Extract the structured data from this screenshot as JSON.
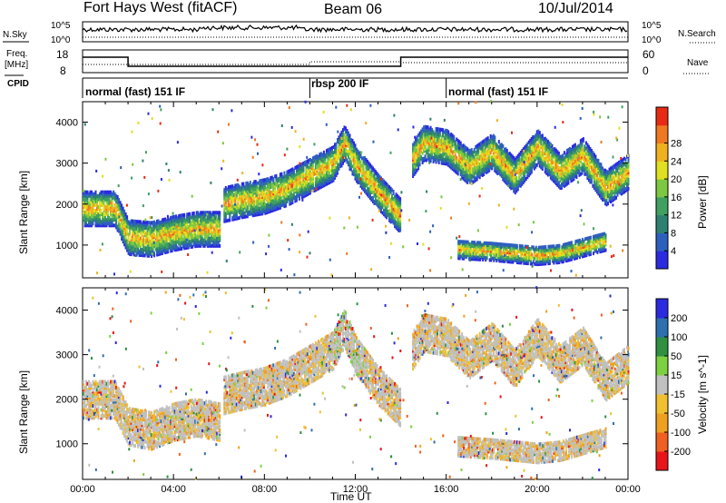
{
  "header": {
    "station": "Fort Hays West (fitACF)",
    "beam": "Beam 06",
    "date": "10/Jul/2014"
  },
  "strip_labels": {
    "nsky": "N.Sky",
    "nsky_max": "10^5",
    "nsky_min": "10^0",
    "nsearch": "N.Search",
    "nsearch_max": "10^5",
    "nsearch_min": "10^0",
    "freq_line1": "Freq.",
    "freq_line2": "[MHz]",
    "freq_max": "18",
    "freq_min": "8",
    "nave": "Nave",
    "nave_max": "60",
    "nave_min": "0",
    "cpid": "CPID"
  },
  "cpid_segments": [
    {
      "label": "normal (fast) 151 IF",
      "start_hour": 0
    },
    {
      "label": "rbsp 200 IF",
      "start_hour": 10
    },
    {
      "label": "normal (fast) 151 IF",
      "start_hour": 16
    }
  ],
  "chart_data": [
    {
      "type": "heatmap",
      "name": "power",
      "ylabel": "Slant Range [km]",
      "xlabel": "",
      "xlim": [
        0,
        24
      ],
      "ylim": [
        200,
        4500
      ],
      "yticks": [
        "1000",
        "2000",
        "3000",
        "4000"
      ],
      "colorbar_label": "Power [dB]",
      "colorbar_ticks": [
        "4",
        "8",
        "12",
        "16",
        "20",
        "24",
        "28"
      ],
      "colorbar_colors": [
        "#2a2ae0",
        "#2d5fbf",
        "#2e8070",
        "#3fa060",
        "#7dc840",
        "#e0e020",
        "#f0b020",
        "#f07820",
        "#e82a14"
      ],
      "bands": [
        {
          "x": [
            0.0,
            1.4,
            2.0,
            3.0,
            4.0,
            5.0,
            6.0
          ],
          "y": [
            1900,
            1900,
            1200,
            1150,
            1300,
            1400,
            1400
          ]
        },
        {
          "x": [
            6.2,
            7.0,
            8.0,
            9.0,
            10.0,
            11.0,
            11.5,
            12.0,
            13.0,
            14.0
          ],
          "y": [
            2000,
            2100,
            2200,
            2400,
            2700,
            3000,
            3500,
            3000,
            2300,
            1700
          ]
        },
        {
          "x": [
            14.5,
            15.0,
            16.0,
            17.0,
            18.0,
            19.0,
            20.0,
            21.0,
            22.0,
            23.0,
            24.0
          ],
          "y": [
            3100,
            3500,
            3400,
            2900,
            3300,
            2700,
            3400,
            2800,
            3200,
            2400,
            2800
          ]
        },
        {
          "x": [
            16.5,
            18.0,
            19.0,
            20.0,
            21.0,
            22.0,
            23.0
          ],
          "y": [
            900,
            850,
            800,
            750,
            800,
            950,
            1100
          ]
        }
      ]
    },
    {
      "type": "heatmap",
      "name": "velocity",
      "ylabel": "Slant Range [km]",
      "xlabel": "Time UT",
      "xlim": [
        0,
        24
      ],
      "ylim": [
        200,
        4500
      ],
      "xticks": [
        "00:00",
        "04:00",
        "08:00",
        "12:00",
        "16:00",
        "20:00",
        "00:00"
      ],
      "yticks": [
        "1000",
        "2000",
        "3000",
        "4000"
      ],
      "colorbar_label": "Velocity [m s^-1]",
      "colorbar_ticks": [
        "-200",
        "-100",
        "-50",
        "-15",
        "15",
        "50",
        "100",
        "200"
      ],
      "colorbar_colors": [
        "#e8141a",
        "#f06020",
        "#f0a020",
        "#f0c030",
        "#c0c0c0",
        "#7dd040",
        "#2e9040",
        "#2d6fb0",
        "#2a2ae0"
      ],
      "bands": [
        {
          "x": [
            0.0,
            1.4,
            2.0,
            3.0,
            4.0,
            5.0,
            6.0
          ],
          "y": [
            2000,
            2000,
            1400,
            1300,
            1500,
            1600,
            1500
          ]
        },
        {
          "x": [
            6.2,
            7.0,
            8.0,
            9.0,
            10.0,
            11.0,
            11.5,
            12.0,
            13.0,
            14.0
          ],
          "y": [
            2100,
            2200,
            2300,
            2500,
            2800,
            3100,
            3600,
            3000,
            2300,
            1800
          ]
        },
        {
          "x": [
            14.5,
            15.0,
            16.0,
            17.0,
            18.0,
            19.0,
            20.0,
            21.0,
            22.0,
            23.0,
            24.0
          ],
          "y": [
            3100,
            3500,
            3400,
            2900,
            3300,
            2700,
            3400,
            2800,
            3200,
            2400,
            2800
          ]
        },
        {
          "x": [
            16.5,
            18.0,
            19.0,
            20.0,
            21.0,
            22.0,
            23.0
          ],
          "y": [
            950,
            900,
            850,
            800,
            850,
            1000,
            1150
          ]
        }
      ]
    }
  ]
}
